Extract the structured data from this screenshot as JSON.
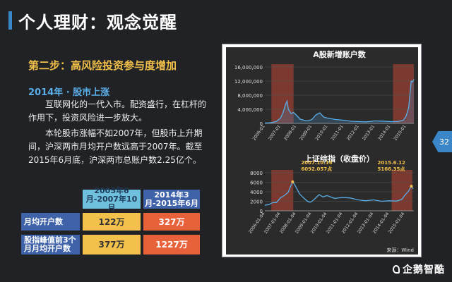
{
  "page_title": "个人理财：观念觉醒",
  "step_title": "第二步：高风险投资参与度增加",
  "section_head": "2014年 · 股市上涨",
  "para1": "互联网化的一代入市。配资盛行，在杠杆的作用下，投资风险进一步放大。",
  "para2": "本轮股市涨幅不如2007年，但股市上升期间，沪深两市月均开户数远高于2007年。截至2015年6月底，沪深两市总账户数2.25亿个。",
  "table": {
    "col_a": "2005年6月-2007年10月",
    "col_b": "2014年3月-2015年6月",
    "rows": [
      {
        "label": "月均开户数",
        "a": "122万",
        "b": "327万"
      },
      {
        "label": "股指峰值前3个月月均开户数",
        "a": "377万",
        "b": "1227万"
      }
    ]
  },
  "page_number": "32",
  "logo_text": "企鹅智酷",
  "chart_data": [
    {
      "type": "area",
      "title": "A股新增账户数",
      "ytick_labels": [
        "0",
        "4,000,000",
        "8,000,000",
        "12,000,000",
        "16,000,000"
      ],
      "xtick_labels": [
        "2006-01",
        "2007-01",
        "2008-01",
        "2009-01",
        "2010-01",
        "2011-01",
        "2012-01",
        "2013-01",
        "2014-01",
        "2015-01"
      ],
      "ylim": [
        0,
        16000000
      ],
      "x": [
        2006.0,
        2006.25,
        2006.5,
        2006.75,
        2007.0,
        2007.17,
        2007.33,
        2007.42,
        2007.5,
        2007.67,
        2007.83,
        2008.0,
        2008.25,
        2008.5,
        2008.75,
        2009.0,
        2009.25,
        2009.5,
        2009.75,
        2010.0,
        2010.5,
        2011.0,
        2011.5,
        2012.0,
        2012.5,
        2013.0,
        2013.5,
        2014.0,
        2014.5,
        2014.83,
        2015.0,
        2015.17,
        2015.33,
        2015.42,
        2015.5
      ],
      "values": [
        100000,
        150000,
        300000,
        600000,
        1500000,
        3200000,
        5500000,
        6300000,
        4000000,
        2800000,
        3100000,
        2400000,
        1200000,
        900000,
        700000,
        1100000,
        2400000,
        3000000,
        1800000,
        1500000,
        1100000,
        900000,
        600000,
        500000,
        450000,
        700000,
        650000,
        500000,
        550000,
        900000,
        2000000,
        4500000,
        12000000,
        11800000,
        12500000
      ],
      "highlight_ranges": [
        [
          2006.42,
          2007.83
        ],
        [
          2014.17,
          2015.5
        ]
      ]
    },
    {
      "type": "line",
      "title": "上证综指（收盘价）",
      "ytick_labels": [
        "0",
        "2000",
        "4000",
        "6000",
        "8000"
      ],
      "xtick_labels": [
        "2006-01-04",
        "2007-01-04",
        "2008-01-04",
        "2009-01-04",
        "2010-01-04",
        "2011-01-04",
        "2012-01-04",
        "2013-01-04",
        "2014-01-04",
        "2015-01-04"
      ],
      "ylim": [
        0,
        8000
      ],
      "x": [
        2006.0,
        2006.25,
        2006.5,
        2006.75,
        2007.0,
        2007.25,
        2007.5,
        2007.67,
        2007.79,
        2007.92,
        2008.0,
        2008.25,
        2008.5,
        2008.75,
        2008.9,
        2009.0,
        2009.25,
        2009.5,
        2009.75,
        2010.0,
        2010.5,
        2011.0,
        2011.5,
        2012.0,
        2012.5,
        2013.0,
        2013.5,
        2014.0,
        2014.5,
        2014.83,
        2015.0,
        2015.25,
        2015.44,
        2015.55
      ],
      "values": [
        1160,
        1300,
        1700,
        1750,
        2700,
        3200,
        3900,
        5200,
        6092,
        5500,
        5000,
        3500,
        2700,
        2000,
        1800,
        1900,
        2600,
        3400,
        2900,
        3200,
        2600,
        2800,
        2700,
        2300,
        2100,
        2300,
        2000,
        2100,
        2050,
        2400,
        3200,
        4100,
        5166,
        4600
      ],
      "annotations": [
        {
          "text": "2007.10.16",
          "value": "6092.057点",
          "x": 2007.79,
          "y": 6092
        },
        {
          "text": "2015.6.12",
          "value": "5166.35点",
          "x": 2015.44,
          "y": 5166
        }
      ],
      "highlight_ranges": [
        [
          2006.42,
          2007.83
        ],
        [
          2014.17,
          2015.5
        ]
      ],
      "source": "来源：Wind"
    }
  ]
}
